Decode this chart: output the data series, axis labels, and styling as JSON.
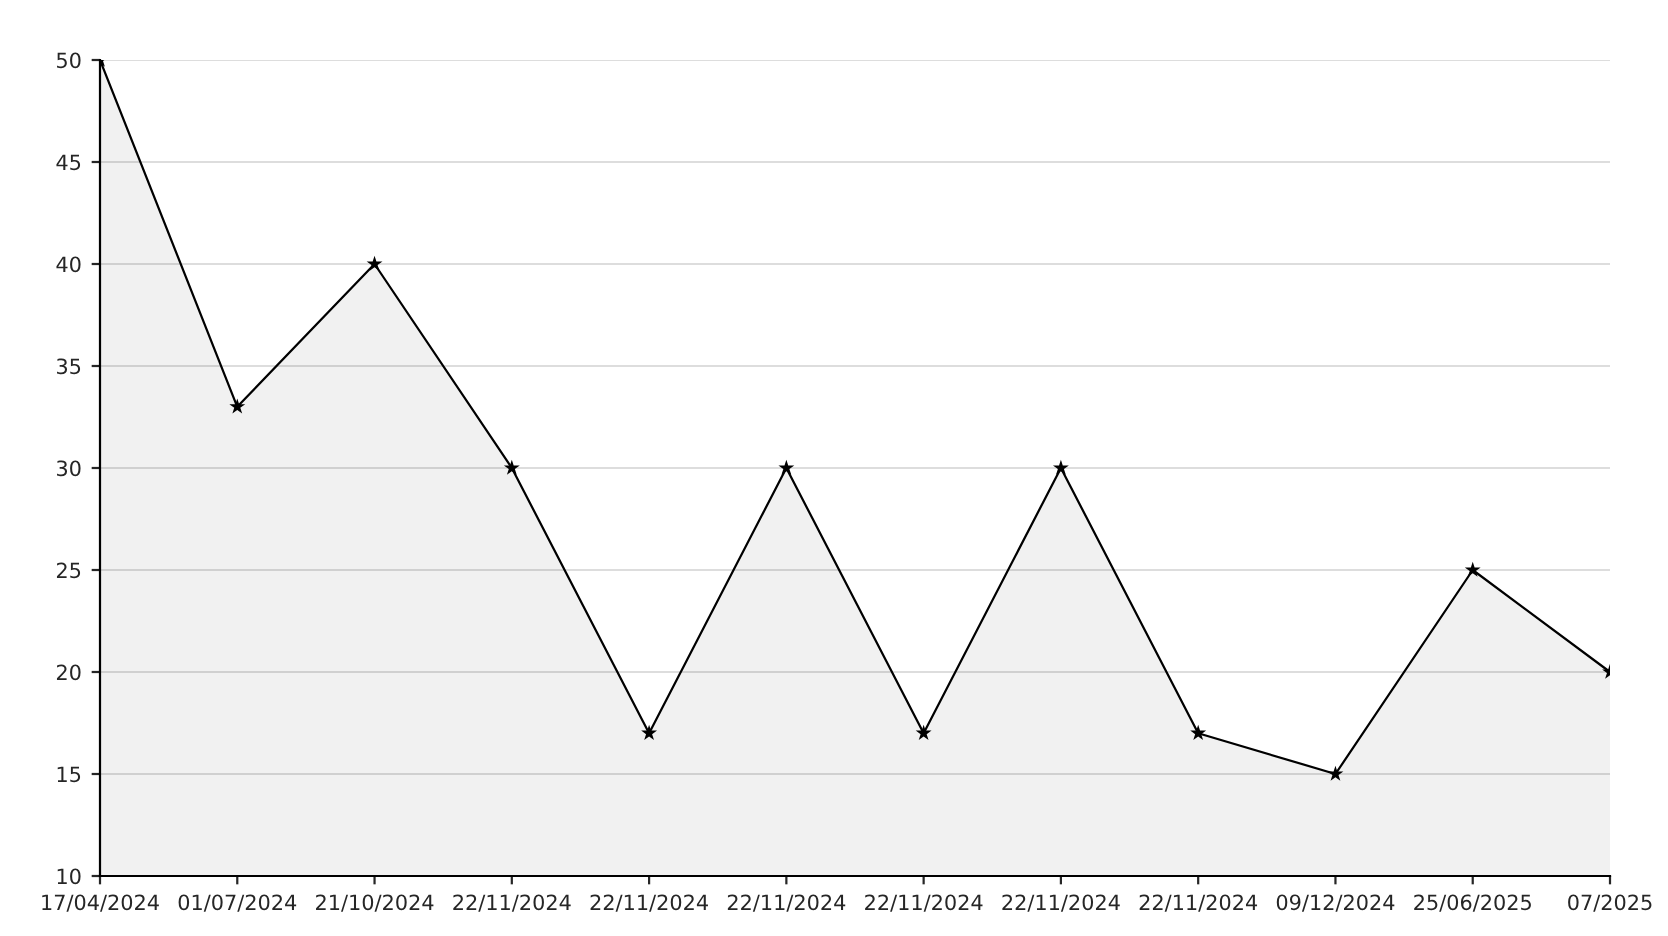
{
  "chart_data": {
    "type": "area",
    "categories": [
      "17/04/2024",
      "01/07/2024",
      "21/10/2024",
      "22/11/2024",
      "22/11/2024",
      "22/11/2024",
      "22/11/2024",
      "22/11/2024",
      "22/11/2024",
      "09/12/2024",
      "25/06/2025",
      "07/2025"
    ],
    "series": [
      {
        "color": "#000000",
        "values": [
          50,
          33,
          40,
          30,
          17,
          30,
          17,
          30,
          17,
          15,
          25,
          20
        ]
      }
    ],
    "ylim": [
      10,
      50
    ],
    "yticks": [
      10,
      15,
      20,
      25,
      30,
      35,
      40,
      45,
      50
    ],
    "grid": "y",
    "marker": "star",
    "line_style": "solid",
    "legend": false
  }
}
